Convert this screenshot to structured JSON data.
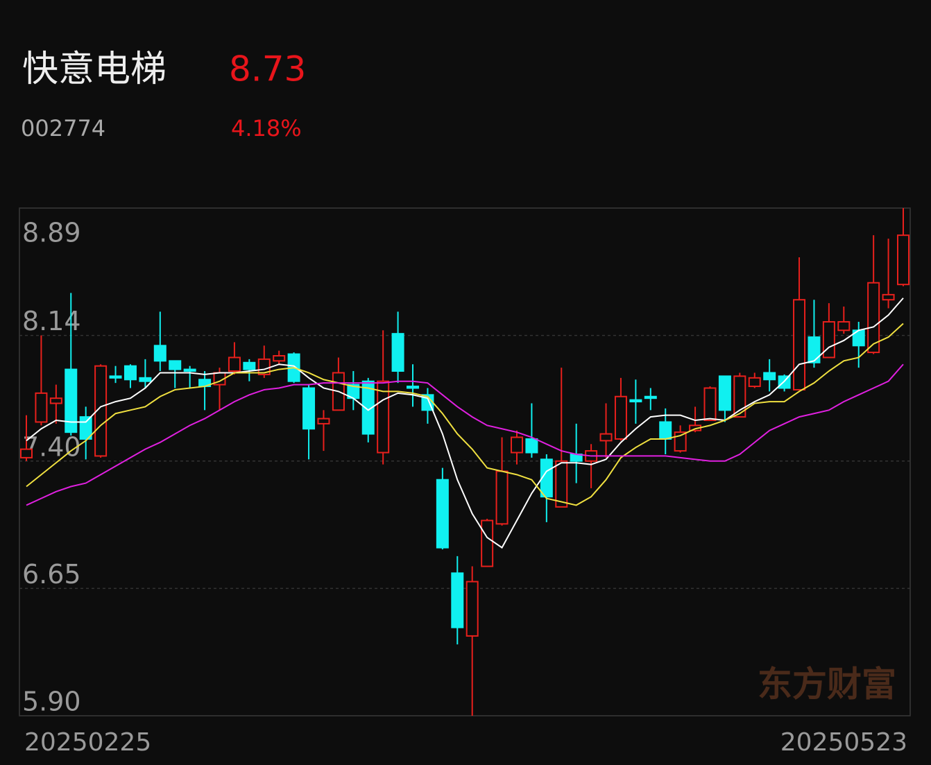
{
  "header": {
    "name": "快意电梯",
    "price": "8.73",
    "code": "002774",
    "change": "4.18%"
  },
  "watermark": "东方财富",
  "chart_data": {
    "type": "candlestick",
    "categories": [
      "20250225",
      null,
      null,
      null,
      null,
      null,
      null,
      null,
      null,
      null,
      null,
      null,
      null,
      null,
      null,
      null,
      null,
      null,
      null,
      null,
      null,
      null,
      null,
      null,
      null,
      null,
      null,
      null,
      null,
      null,
      null,
      null,
      null,
      null,
      null,
      null,
      null,
      null,
      null,
      null,
      null,
      null,
      null,
      null,
      null,
      null,
      null,
      null,
      null,
      null,
      null,
      null,
      null,
      null,
      null,
      null,
      null,
      null,
      null,
      "20250523"
    ],
    "open": [
      7.42,
      7.63,
      7.74,
      7.94,
      7.66,
      7.43,
      7.9,
      7.96,
      7.89,
      8.08,
      7.99,
      7.94,
      7.88,
      7.85,
      7.93,
      7.98,
      7.91,
      7.99,
      8.03,
      7.83,
      7.62,
      7.7,
      7.85,
      7.87,
      7.45,
      8.15,
      7.84,
      7.79,
      7.29,
      6.74,
      6.37,
      6.78,
      7.03,
      7.45,
      7.53,
      7.41,
      7.13,
      7.44,
      7.4,
      7.52,
      7.53,
      7.76,
      7.78,
      7.63,
      7.46,
      7.58,
      7.64,
      7.9,
      7.66,
      7.84,
      7.92,
      7.9,
      7.82,
      8.13,
      8.01,
      8.17,
      8.17,
      8.04,
      8.35,
      8.44
    ],
    "high": [
      7.67,
      8.14,
      7.85,
      8.39,
      7.72,
      7.97,
      7.96,
      7.97,
      8.0,
      8.28,
      7.99,
      7.96,
      7.93,
      7.95,
      8.1,
      8.0,
      8.08,
      8.05,
      8.04,
      7.85,
      7.7,
      8.01,
      7.93,
      7.89,
      8.17,
      8.28,
      7.97,
      7.83,
      7.36,
      6.84,
      6.78,
      7.06,
      7.54,
      7.58,
      7.74,
      7.44,
      7.95,
      7.62,
      7.5,
      7.74,
      7.89,
      7.88,
      7.83,
      7.71,
      7.61,
      7.72,
      7.84,
      7.9,
      7.92,
      7.92,
      8.0,
      7.91,
      8.6,
      8.35,
      8.33,
      8.31,
      8.22,
      8.73,
      8.71,
      8.89
    ],
    "low": [
      7.4,
      7.61,
      7.62,
      7.55,
      7.41,
      7.42,
      7.86,
      7.83,
      7.83,
      7.93,
      7.83,
      7.83,
      7.7,
      7.7,
      7.91,
      7.87,
      7.89,
      7.97,
      7.86,
      7.41,
      7.46,
      7.7,
      7.7,
      7.51,
      7.38,
      7.86,
      7.72,
      7.62,
      6.88,
      6.32,
      5.9,
      6.78,
      7.02,
      7.38,
      7.42,
      7.04,
      7.13,
      7.27,
      7.24,
      7.42,
      7.52,
      7.62,
      7.7,
      7.44,
      7.45,
      7.57,
      7.64,
      7.63,
      7.66,
      7.83,
      7.81,
      7.81,
      7.82,
      7.95,
      8.01,
      8.15,
      7.95,
      8.03,
      8.3,
      8.43
    ],
    "close": [
      7.47,
      7.8,
      7.77,
      7.57,
      7.53,
      7.96,
      7.89,
      7.88,
      7.87,
      7.99,
      7.94,
      7.93,
      7.84,
      7.92,
      8.01,
      7.94,
      8.0,
      8.02,
      7.87,
      7.59,
      7.65,
      7.92,
      7.77,
      7.56,
      7.87,
      7.93,
      7.83,
      7.7,
      6.89,
      6.42,
      6.69,
      7.05,
      7.34,
      7.54,
      7.45,
      7.19,
      7.4,
      7.4,
      7.46,
      7.56,
      7.78,
      7.75,
      7.77,
      7.53,
      7.57,
      7.61,
      7.83,
      7.7,
      7.9,
      7.89,
      7.88,
      7.83,
      8.35,
      7.98,
      8.22,
      8.22,
      8.08,
      8.45,
      8.38,
      8.73
    ],
    "up_color": "#e8201c",
    "down_color": "#10f0f0",
    "moving_averages": [
      {
        "color": "#ffffff",
        "values": [
          7.52,
          7.59,
          7.64,
          7.63,
          7.63,
          7.72,
          7.75,
          7.77,
          7.83,
          7.92,
          7.92,
          7.92,
          7.91,
          7.92,
          7.92,
          7.93,
          7.94,
          7.97,
          7.96,
          7.89,
          7.83,
          7.81,
          7.77,
          7.7,
          7.76,
          7.8,
          7.79,
          7.77,
          7.56,
          7.29,
          7.09,
          6.95,
          6.89,
          7.05,
          7.21,
          7.34,
          7.39,
          7.39,
          7.38,
          7.41,
          7.51,
          7.59,
          7.66,
          7.67,
          7.67,
          7.64,
          7.65,
          7.64,
          7.7,
          7.75,
          7.79,
          7.87,
          7.97,
          7.99,
          8.07,
          8.11,
          8.17,
          8.19,
          8.26,
          8.36
        ]
      },
      {
        "color": "#f0e040",
        "values": [
          7.25,
          7.32,
          7.39,
          7.46,
          7.52,
          7.61,
          7.68,
          7.7,
          7.72,
          7.78,
          7.82,
          7.83,
          7.84,
          7.87,
          7.92,
          7.92,
          7.92,
          7.94,
          7.95,
          7.92,
          7.88,
          7.86,
          7.84,
          7.83,
          7.81,
          7.81,
          7.8,
          7.78,
          7.68,
          7.56,
          7.47,
          7.36,
          7.34,
          7.32,
          7.29,
          7.18,
          7.16,
          7.14,
          7.19,
          7.29,
          7.42,
          7.48,
          7.53,
          7.53,
          7.55,
          7.59,
          7.61,
          7.64,
          7.68,
          7.74,
          7.75,
          7.75,
          7.81,
          7.86,
          7.93,
          7.99,
          8.01,
          8.09,
          8.13,
          8.21
        ]
      },
      {
        "color": "#e020e0",
        "values": [
          7.14,
          7.18,
          7.22,
          7.25,
          7.27,
          7.32,
          7.37,
          7.42,
          7.47,
          7.51,
          7.56,
          7.61,
          7.65,
          7.7,
          7.75,
          7.79,
          7.82,
          7.83,
          7.85,
          7.85,
          7.86,
          7.86,
          7.86,
          7.86,
          7.86,
          7.87,
          7.87,
          7.86,
          7.79,
          7.72,
          7.66,
          7.61,
          7.59,
          7.57,
          7.54,
          7.5,
          7.46,
          7.44,
          7.43,
          7.43,
          7.43,
          7.43,
          7.43,
          7.43,
          7.42,
          7.41,
          7.4,
          7.4,
          7.44,
          7.51,
          7.58,
          7.62,
          7.66,
          7.68,
          7.7,
          7.75,
          7.79,
          7.83,
          7.87,
          7.97
        ]
      }
    ],
    "ylim": [
      5.9,
      8.89
    ],
    "yticks": [
      {
        "value": 5.9,
        "label": "5.90"
      },
      6.65,
      {
        "value": 7.4,
        "label": "7.40"
      },
      8.14,
      8.89
    ],
    "grid": true
  }
}
